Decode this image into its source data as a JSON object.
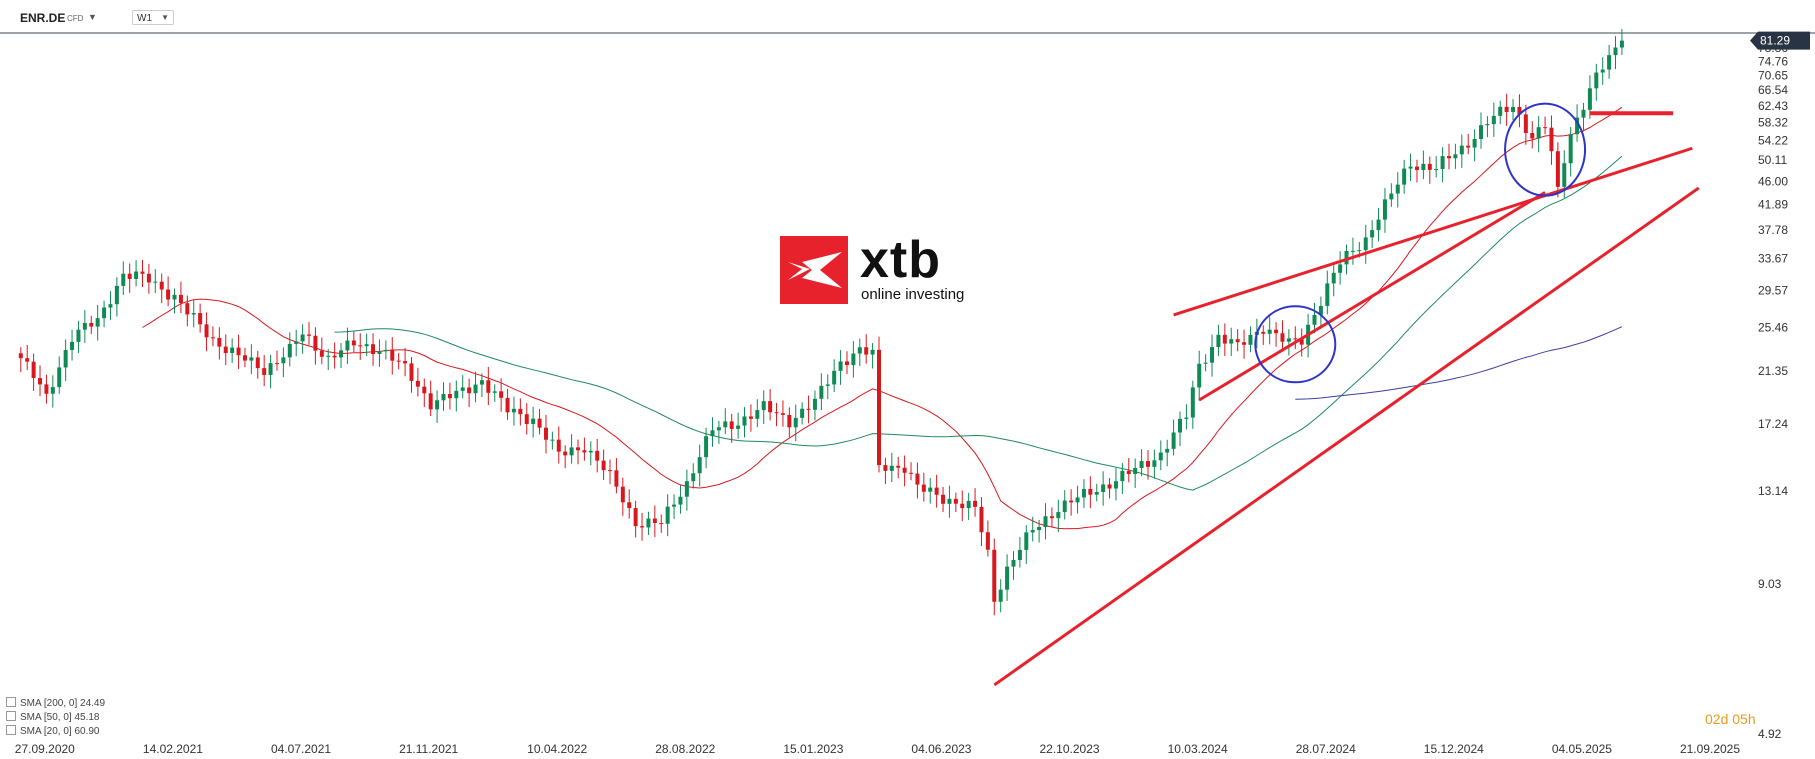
{
  "header": {
    "symbol": "ENR.DE",
    "symbol_type": "CFD",
    "timeframe": "W1"
  },
  "logo": {
    "name": "xtb",
    "tagline": "online investing"
  },
  "legend": [
    {
      "label": "SMA [200, 0] 24.49"
    },
    {
      "label": "SMA [50, 0] 45.18"
    },
    {
      "label": "SMA [20, 0] 60.90"
    }
  ],
  "timer": {
    "days": "02",
    "d_unit": "d",
    "hours": "05",
    "h_unit": "h"
  },
  "colors": {
    "bull": "#0f8a55",
    "bear": "#d7191f",
    "sma20": "#d7191f",
    "sma50": "#1e8a5c",
    "sma200": "#3b3f9e",
    "annotation": "#e8222d",
    "circle": "#2d34c9",
    "price_tag": "#283444"
  },
  "chart_data": {
    "type": "candlestick",
    "scale": "log",
    "ylim": [
      4.92,
      83.5
    ],
    "y_ticks": [
      "81.29",
      "78.86",
      "74.76",
      "70.65",
      "66.54",
      "62.43",
      "58.32",
      "54.22",
      "50.11",
      "46.00",
      "41.89",
      "37.78",
      "33.67",
      "29.57",
      "25.46",
      "21.35",
      "17.24",
      "13.14",
      "9.03",
      "4.92"
    ],
    "x_ticks": [
      "27.09.2020",
      "14.02.2021",
      "04.07.2021",
      "21.11.2021",
      "10.04.2022",
      "28.08.2022",
      "15.01.2023",
      "04.06.2023",
      "22.10.2023",
      "10.03.2024",
      "28.07.2024",
      "15.12.2024",
      "04.05.2025",
      "21.09.2025"
    ],
    "x_tick_weeks": [
      0,
      20,
      40,
      60,
      80,
      100,
      120,
      140,
      160,
      180,
      200,
      220,
      240,
      260
    ],
    "last_price": "81.29",
    "anchors": [
      [
        0,
        22.5
      ],
      [
        4,
        19.2
      ],
      [
        8,
        24.5
      ],
      [
        12,
        26.2
      ],
      [
        16,
        31.5
      ],
      [
        20,
        31
      ],
      [
        24,
        28.8
      ],
      [
        26,
        27
      ],
      [
        30,
        24.3
      ],
      [
        34,
        22.6
      ],
      [
        38,
        21.5
      ],
      [
        42,
        23.2
      ],
      [
        44,
        24.8
      ],
      [
        48,
        22.5
      ],
      [
        52,
        23.8
      ],
      [
        56,
        23.4
      ],
      [
        60,
        21.5
      ],
      [
        64,
        18.8
      ],
      [
        68,
        19.4
      ],
      [
        72,
        20.6
      ],
      [
        76,
        18.2
      ],
      [
        80,
        17.6
      ],
      [
        84,
        15.2
      ],
      [
        88,
        15.8
      ],
      [
        92,
        13.9
      ],
      [
        96,
        11.6
      ],
      [
        100,
        11.5
      ],
      [
        104,
        13.6
      ],
      [
        108,
        16.8
      ],
      [
        112,
        17.4
      ],
      [
        116,
        18.4
      ],
      [
        120,
        17.5
      ],
      [
        124,
        18.8
      ],
      [
        128,
        22.2
      ],
      [
        131,
        23.2
      ],
      [
        133,
        22.8
      ],
      [
        134,
        14.6
      ],
      [
        138,
        14.5
      ],
      [
        140,
        13.3
      ],
      [
        145,
        12.7
      ],
      [
        149,
        12.2
      ],
      [
        151,
        10.2
      ],
      [
        152,
        8.5
      ],
      [
        154,
        9.6
      ],
      [
        158,
        11.2
      ],
      [
        162,
        12.3
      ],
      [
        166,
        12.9
      ],
      [
        170,
        13.6
      ],
      [
        174,
        14.3
      ],
      [
        178,
        15.3
      ],
      [
        182,
        17.8
      ],
      [
        184,
        21.8
      ],
      [
        187,
        24.6
      ],
      [
        190,
        23.5
      ],
      [
        194,
        25.6
      ],
      [
        198,
        23.8
      ],
      [
        200,
        24.2
      ],
      [
        203,
        28.5
      ],
      [
        206,
        33.0
      ],
      [
        210,
        36.5
      ],
      [
        214,
        43.5
      ],
      [
        217,
        49.5
      ],
      [
        221,
        48.5
      ],
      [
        225,
        52.5
      ],
      [
        229,
        58.5
      ],
      [
        233,
        62.5
      ],
      [
        236,
        55.0
      ],
      [
        238,
        57.5
      ],
      [
        240,
        45.0
      ],
      [
        242,
        56.0
      ],
      [
        244,
        63.0
      ],
      [
        246,
        70.0
      ],
      [
        248,
        75.5
      ],
      [
        250,
        81.29
      ]
    ]
  }
}
